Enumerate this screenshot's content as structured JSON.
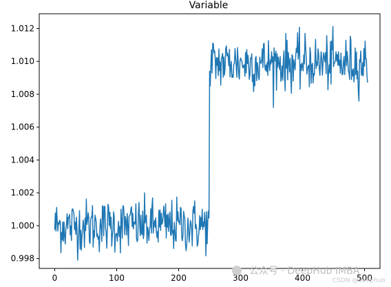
{
  "chart_data": {
    "type": "line",
    "title": "Variable",
    "xlabel": "",
    "ylabel": "",
    "xlim": [
      -25,
      525
    ],
    "ylim": [
      0.9974,
      1.0129
    ],
    "x_ticks": [
      0,
      100,
      200,
      300,
      400,
      500
    ],
    "x_tick_labels": [
      "0",
      "100",
      "200",
      "300",
      "400",
      "500"
    ],
    "y_ticks": [
      0.998,
      1.0,
      1.002,
      1.004,
      1.006,
      1.008,
      1.01,
      1.012
    ],
    "y_tick_labels": [
      "0.998",
      "1.000",
      "1.002",
      "1.004",
      "1.006",
      "1.008",
      "1.010",
      "1.012"
    ],
    "grid": false,
    "series": [
      {
        "color": "#1f77b4",
        "x_start": 0,
        "x_step": 1,
        "segments": [
          {
            "from": 0,
            "to": 249,
            "mean": 1.0,
            "std": 0.0008,
            "min": 0.9976,
            "max": 1.0025
          },
          {
            "from": 250,
            "to": 252,
            "values": [
              1.0094,
              1.0085,
              1.0097
            ]
          },
          {
            "from": 253,
            "to": 505,
            "mean": 1.0099,
            "std": 0.0008,
            "min": 1.0072,
            "max": 1.0125
          }
        ],
        "x_end": 505
      }
    ]
  },
  "watermark": {
    "text": "公众号 · DeepHub IMBA",
    "subtext": "CSDN @deephub"
  }
}
